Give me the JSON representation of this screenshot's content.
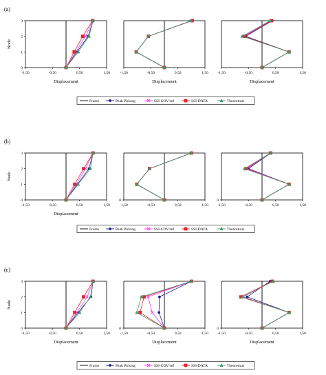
{
  "chart_data": [
    {
      "type": "line",
      "panel_label": "(a)",
      "row": 0,
      "col": 0,
      "ylabel": "Node",
      "xlabel": "Displacement",
      "xlim": [
        -1.5,
        1.5
      ],
      "ylim": [
        0,
        3
      ],
      "xticks": [
        "-1,50",
        "-0,50",
        "0,50",
        "1,50"
      ],
      "yticks": [
        "0",
        "1",
        "2",
        "3"
      ],
      "y": [
        0,
        1,
        2,
        3
      ],
      "series": [
        {
          "name": "Frame",
          "values": [
            0,
            0,
            0,
            0
          ]
        },
        {
          "name": "Peak Picking",
          "values": [
            0,
            0.4,
            0.82,
            1
          ]
        },
        {
          "name": "SSI-COV/ref",
          "values": [
            0,
            0.36,
            0.72,
            1
          ]
        },
        {
          "name": "SSI-DATA",
          "values": [
            0,
            0.3,
            0.62,
            0.98
          ]
        },
        {
          "name": "Theoretical",
          "values": [
            0,
            0.45,
            0.85,
            1
          ]
        }
      ]
    },
    {
      "type": "line",
      "panel_label": "",
      "row": 0,
      "col": 1,
      "ylabel": "",
      "xlabel": "Displacement",
      "xlim": [
        -1.5,
        1.5
      ],
      "ylim": [
        0,
        3
      ],
      "xticks": [
        "-1,50",
        "-0,50",
        "0,50",
        "1,50"
      ],
      "yticks": [],
      "y": [
        0,
        1,
        2,
        3
      ],
      "series": [
        {
          "name": "Frame",
          "values": [
            0,
            0,
            0,
            0
          ]
        },
        {
          "name": "Peak Picking",
          "values": [
            0,
            -1.04,
            -0.59,
            1
          ]
        },
        {
          "name": "SSI-COV/ref",
          "values": [
            0,
            -1.04,
            -0.59,
            1
          ]
        },
        {
          "name": "SSI-DATA",
          "values": [
            0,
            -1.04,
            -0.59,
            1.03
          ]
        },
        {
          "name": "Theoretical",
          "values": [
            0,
            -1.04,
            -0.59,
            1
          ]
        }
      ]
    },
    {
      "type": "line",
      "panel_label": "",
      "row": 0,
      "col": 2,
      "ylabel": "",
      "xlabel": "Displacement",
      "xlim": [
        -1.5,
        1.5
      ],
      "ylim": [
        0,
        3
      ],
      "xticks": [
        "-1,50",
        "-0,50",
        "0,50",
        "1,50"
      ],
      "yticks": [],
      "y": [
        0,
        1,
        2,
        3
      ],
      "series": [
        {
          "name": "Frame",
          "values": [
            0,
            0,
            0,
            0
          ]
        },
        {
          "name": "Peak Picking",
          "values": [
            0,
            1,
            -0.6,
            0.38
          ]
        },
        {
          "name": "SSI-COV/ref",
          "values": [
            0,
            1,
            -0.7,
            0.33
          ]
        },
        {
          "name": "SSI-DATA",
          "values": [
            0,
            1,
            -0.65,
            0.35
          ]
        },
        {
          "name": "Theoretical",
          "values": [
            0,
            1,
            -0.73,
            0.3
          ]
        }
      ]
    },
    {
      "type": "line",
      "panel_label": "(b)",
      "row": 1,
      "col": 0,
      "ylabel": "Node",
      "xlabel": "Displacement",
      "xlim": [
        -1.5,
        1.5
      ],
      "ylim": [
        0,
        3
      ],
      "xticks": [
        "-1,50",
        "-0,50",
        "0,50",
        "1,50"
      ],
      "yticks": [
        "0",
        "1",
        "2",
        "3"
      ],
      "y": [
        0,
        1,
        2,
        3
      ],
      "series": [
        {
          "name": "Frame",
          "values": [
            0,
            0,
            0,
            0
          ]
        },
        {
          "name": "Peak Picking",
          "values": [
            0,
            0.42,
            0.85,
            1
          ]
        },
        {
          "name": "SSI-COV/ref",
          "values": [
            0,
            0.38,
            0.72,
            1
          ]
        },
        {
          "name": "SSI-DATA",
          "values": [
            0,
            0.32,
            0.65,
            1
          ]
        },
        {
          "name": "Theoretical",
          "values": [
            0,
            0.45,
            0.9,
            1
          ]
        }
      ]
    },
    {
      "type": "line",
      "panel_label": "",
      "row": 1,
      "col": 1,
      "ylabel": "",
      "xlabel": "",
      "xlim": [
        -1.5,
        1.5
      ],
      "ylim": [
        0,
        3
      ],
      "xticks": [
        "-1,50",
        "-0,50",
        "0,50",
        "1,50"
      ],
      "yticks": [
        "0"
      ],
      "y": [
        0,
        1,
        2,
        3
      ],
      "series": [
        {
          "name": "Frame",
          "values": [
            0,
            0,
            0,
            0
          ]
        },
        {
          "name": "Peak Picking",
          "values": [
            0,
            -1.02,
            -0.55,
            1
          ]
        },
        {
          "name": "SSI-COV/ref",
          "values": [
            0,
            -1.02,
            -0.55,
            1
          ]
        },
        {
          "name": "SSI-DATA",
          "values": [
            0,
            -1.02,
            -0.55,
            1
          ]
        },
        {
          "name": "Theoretical",
          "values": [
            0,
            -1.02,
            -0.55,
            1
          ]
        }
      ]
    },
    {
      "type": "line",
      "panel_label": "",
      "row": 1,
      "col": 2,
      "ylabel": "",
      "xlabel": "",
      "xlim": [
        -1.5,
        1.5
      ],
      "ylim": [
        0,
        3
      ],
      "xticks": [
        "-1,50",
        "-0,50",
        "0,50",
        "1,50"
      ],
      "yticks": [
        "0"
      ],
      "y": [
        0,
        1,
        2,
        3
      ],
      "series": [
        {
          "name": "Frame",
          "values": [
            0,
            0,
            0,
            0
          ]
        },
        {
          "name": "Peak Picking",
          "values": [
            0,
            1,
            -0.5,
            0.32
          ]
        },
        {
          "name": "SSI-COV/ref",
          "values": [
            0,
            1,
            -0.55,
            0.3
          ]
        },
        {
          "name": "SSI-DATA",
          "values": [
            0,
            1,
            -0.6,
            0.32
          ]
        },
        {
          "name": "Theoretical",
          "values": [
            0,
            1,
            -0.65,
            0.32
          ]
        }
      ]
    },
    {
      "type": "line",
      "panel_label": "(c)",
      "row": 2,
      "col": 0,
      "ylabel": "Node",
      "xlabel": "Displacement",
      "xlim": [
        -1.5,
        1.5
      ],
      "ylim": [
        0,
        3
      ],
      "xticks": [
        "-1,50",
        "-0,50",
        "0,50",
        "1,50"
      ],
      "yticks": [
        "0",
        "1",
        "2",
        "3"
      ],
      "y": [
        0,
        1,
        2,
        3
      ],
      "series": [
        {
          "name": "Frame",
          "values": [
            0,
            0,
            0,
            0
          ]
        },
        {
          "name": "Peak Picking",
          "values": [
            0,
            0.45,
            0.92,
            1
          ]
        },
        {
          "name": "SSI-COV/ref",
          "values": [
            0,
            0.4,
            0.78,
            1
          ]
        },
        {
          "name": "SSI-DATA",
          "values": [
            0,
            0.32,
            0.65,
            1
          ]
        },
        {
          "name": "Theoretical",
          "values": [
            0,
            0.5,
            0.9,
            1
          ]
        }
      ]
    },
    {
      "type": "line",
      "panel_label": "",
      "row": 2,
      "col": 1,
      "ylabel": "",
      "xlabel": "Displacement",
      "xlim": [
        -1.5,
        1.5
      ],
      "ylim": [
        0,
        3
      ],
      "xticks": [
        "-1,50",
        "-0,50",
        "0,50",
        "1,50"
      ],
      "yticks": [
        "0"
      ],
      "y": [
        0,
        1,
        2,
        3
      ],
      "series": [
        {
          "name": "Frame",
          "values": [
            0,
            0,
            0,
            0
          ]
        },
        {
          "name": "Peak Picking",
          "values": [
            0,
            -0.2,
            -0.18,
            1
          ]
        },
        {
          "name": "SSI-COV/ref",
          "values": [
            0,
            -0.45,
            -0.6,
            1
          ]
        },
        {
          "name": "SSI-DATA",
          "values": [
            0,
            -0.9,
            -0.75,
            1
          ]
        },
        {
          "name": "Theoretical",
          "values": [
            0,
            -1.02,
            -0.85,
            1
          ]
        }
      ]
    },
    {
      "type": "line",
      "panel_label": "",
      "row": 2,
      "col": 2,
      "ylabel": "",
      "xlabel": "Displacement",
      "xlim": [
        -1.5,
        1.5
      ],
      "ylim": [
        0,
        3
      ],
      "xticks": [
        "-1,50",
        "-0,50",
        "0,50",
        "1,50"
      ],
      "yticks": [
        "0"
      ],
      "y": [
        0,
        1,
        2,
        3
      ],
      "series": [
        {
          "name": "Frame",
          "values": [
            0,
            0,
            0,
            0
          ]
        },
        {
          "name": "Peak Picking",
          "values": [
            0,
            1,
            -0.55,
            0.3
          ]
        },
        {
          "name": "SSI-COV/ref",
          "values": [
            0,
            1,
            -0.7,
            0.38
          ]
        },
        {
          "name": "SSI-DATA",
          "values": [
            0,
            1,
            -0.78,
            0.38
          ]
        },
        {
          "name": "Theoretical",
          "values": [
            0,
            1,
            -0.72,
            0.42
          ]
        }
      ]
    }
  ],
  "series_style": [
    {
      "name": "Frame",
      "color": "#000000",
      "marker": "none"
    },
    {
      "name": "Peak Picking",
      "color": "#1f1f8f",
      "marker": "circle"
    },
    {
      "name": "SSI-COV/ref",
      "color": "#ff33ff",
      "marker": "cross"
    },
    {
      "name": "SSI-DATA",
      "color": "#e8202a",
      "marker": "square"
    },
    {
      "name": "Theoretical",
      "color": "#3a9a6a",
      "marker": "triangle"
    }
  ],
  "legends": [
    {
      "row": 0,
      "items": [
        "Frame",
        "Peak Picking",
        "SSI-COV/ref",
        "SSI-DATA",
        "Theoretical"
      ]
    },
    {
      "row": 1,
      "items": [
        "Frame",
        "Peak Picking",
        "SSI-COV/ref",
        "SSI-DATA",
        "Theoretical"
      ]
    },
    {
      "row": 2,
      "items": [
        "Frame",
        "Peak Picking",
        "SSI-COV/ref",
        "SSI-DATA",
        "Theoretical"
      ]
    }
  ]
}
